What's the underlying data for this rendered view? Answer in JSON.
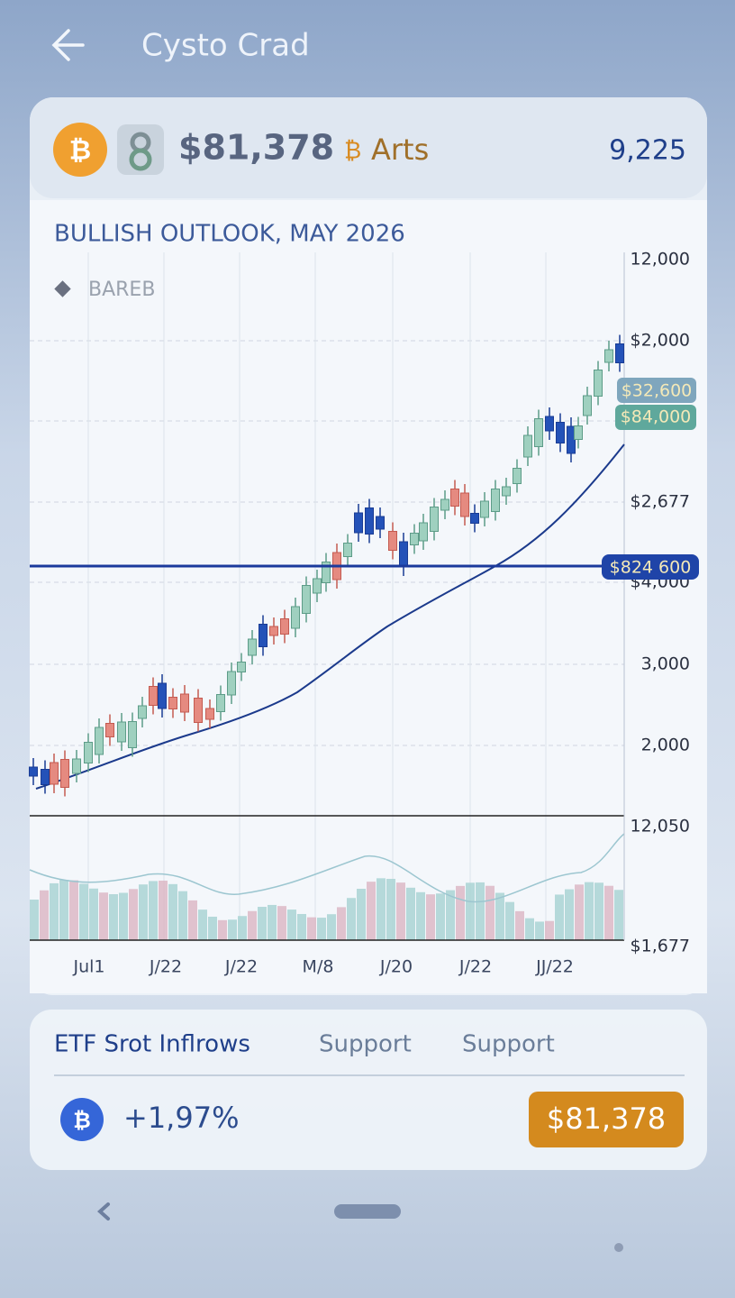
{
  "header": {
    "title": "Cysto Crad"
  },
  "ticker": {
    "price": "$81,378",
    "name": "Arts",
    "count": "9,225"
  },
  "chart": {
    "title": "BULLISH OUTLOOK, MAY 2026",
    "legend": "BAREB",
    "y_labels": [
      "12,000",
      "$2,000",
      "$2,677",
      "$4,000",
      "3,000",
      "2,000",
      "12,050",
      "$1,677"
    ],
    "price_tags": [
      "$32,600",
      "$84,000",
      "$824 600"
    ],
    "x_labels": [
      "Jul1",
      "J/22",
      "J/22",
      "M/8",
      "J/20",
      "J/22",
      "JJ/22"
    ]
  },
  "stats": {
    "tabs": [
      "ETF Srot Inflrows",
      "Support",
      "Support"
    ],
    "change": "+1,97%",
    "price": "$81,378"
  }
}
